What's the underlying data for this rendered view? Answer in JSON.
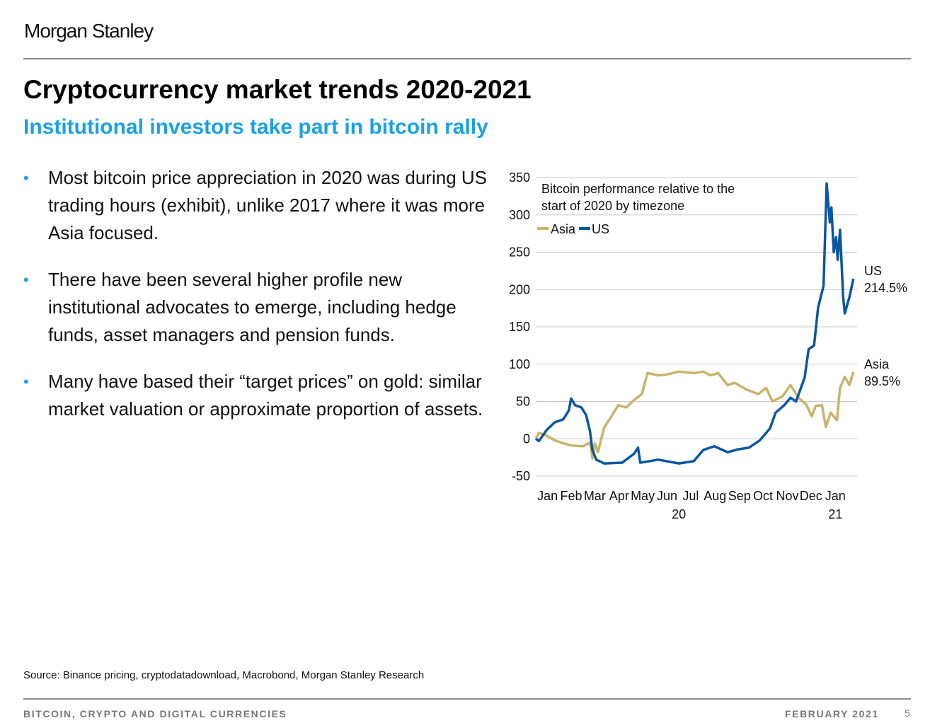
{
  "header": {
    "logo": "Morgan Stanley",
    "title": "Cryptocurrency market trends 2020-2021",
    "subtitle": "Institutional investors take part in bitcoin rally"
  },
  "bullets": [
    "Most bitcoin price appreciation in 2020 was during US trading hours (exhibit), unlike 2017 where it was more Asia focused.",
    "There have been several higher profile new institutional advocates to emerge, including hedge funds, asset managers and pension funds.",
    "Many have based their “target prices” on gold: similar market valuation or approximate proportion of assets."
  ],
  "source": "Source: Binance pricing, cryptodatadownload, Macrobond, Morgan Stanley Research",
  "footer": {
    "left": "BITCOIN, CRYPTO AND DIGITAL CURRENCIES",
    "right": "FEBRUARY 2021",
    "page": "5"
  },
  "colors": {
    "accent": "#1ba1e2",
    "asia": "#c9b36a",
    "us": "#0a56a0"
  },
  "chart_data": {
    "type": "line",
    "title": "Bitcoin performance relative to the start of 2020 by timezone",
    "ylim": [
      -50,
      350
    ],
    "yticks": [
      "350",
      "300",
      "250",
      "200",
      "150",
      "100",
      "50",
      "0",
      "-50"
    ],
    "ytick_values": [
      350,
      300,
      250,
      200,
      150,
      100,
      50,
      0,
      -50
    ],
    "xticks": [
      "Jan",
      "Feb",
      "Mar",
      "Apr",
      "May",
      "Jun",
      "Jul",
      "Aug",
      "Sep",
      "Oct",
      "Nov",
      "Dec",
      "Jan"
    ],
    "xtick_dates": [
      "2020-01-16",
      "2020-02-15",
      "2020-03-16",
      "2020-04-16",
      "2020-05-16",
      "2020-06-16",
      "2020-07-16",
      "2020-08-16",
      "2020-09-16",
      "2020-10-16",
      "2020-11-16",
      "2020-12-16",
      "2021-01-16"
    ],
    "year_labels": [
      {
        "label": "20",
        "date": "2020-07-01"
      },
      {
        "label": "21",
        "date": "2021-01-16"
      }
    ],
    "xlim": [
      "2020-01-01",
      "2021-02-10"
    ],
    "grid": true,
    "legend": "top-left",
    "end_labels": [
      {
        "series": "US",
        "line1": "US",
        "line2": "214.5%"
      },
      {
        "series": "Asia",
        "line1": "Asia",
        "line2": "89.5%"
      }
    ],
    "series": [
      {
        "name": "Asia",
        "points": [
          [
            "2020-01-01",
            0
          ],
          [
            "2020-01-05",
            8
          ],
          [
            "2020-01-15",
            4
          ],
          [
            "2020-01-25",
            -2
          ],
          [
            "2020-02-05",
            -6
          ],
          [
            "2020-02-15",
            -9
          ],
          [
            "2020-03-01",
            -10
          ],
          [
            "2020-03-10",
            -5
          ],
          [
            "2020-03-13",
            -26
          ],
          [
            "2020-03-16",
            -6
          ],
          [
            "2020-03-20",
            -18
          ],
          [
            "2020-03-28",
            15
          ],
          [
            "2020-04-05",
            28
          ],
          [
            "2020-04-15",
            45
          ],
          [
            "2020-04-25",
            42
          ],
          [
            "2020-05-05",
            52
          ],
          [
            "2020-05-15",
            60
          ],
          [
            "2020-05-22",
            88
          ],
          [
            "2020-06-05",
            85
          ],
          [
            "2020-06-15",
            86
          ],
          [
            "2020-07-01",
            90
          ],
          [
            "2020-07-20",
            88
          ],
          [
            "2020-08-01",
            90
          ],
          [
            "2020-08-10",
            85
          ],
          [
            "2020-08-20",
            88
          ],
          [
            "2020-09-01",
            72
          ],
          [
            "2020-09-10",
            75
          ],
          [
            "2020-09-25",
            66
          ],
          [
            "2020-10-10",
            60
          ],
          [
            "2020-10-20",
            68
          ],
          [
            "2020-10-28",
            50
          ],
          [
            "2020-11-10",
            57
          ],
          [
            "2020-11-20",
            72
          ],
          [
            "2020-11-30",
            55
          ],
          [
            "2020-12-10",
            46
          ],
          [
            "2020-12-17",
            30
          ],
          [
            "2020-12-22",
            44
          ],
          [
            "2020-12-30",
            45
          ],
          [
            "2021-01-04",
            16
          ],
          [
            "2021-01-10",
            35
          ],
          [
            "2021-01-18",
            25
          ],
          [
            "2021-01-22",
            68
          ],
          [
            "2021-01-28",
            83
          ],
          [
            "2021-02-03",
            72
          ],
          [
            "2021-02-08",
            89.5
          ]
        ]
      },
      {
        "name": "US",
        "points": [
          [
            "2020-01-01",
            0
          ],
          [
            "2020-01-05",
            -3
          ],
          [
            "2020-01-15",
            12
          ],
          [
            "2020-01-25",
            22
          ],
          [
            "2020-02-05",
            26
          ],
          [
            "2020-02-12",
            38
          ],
          [
            "2020-02-15",
            54
          ],
          [
            "2020-02-20",
            45
          ],
          [
            "2020-02-28",
            42
          ],
          [
            "2020-03-05",
            32
          ],
          [
            "2020-03-10",
            10
          ],
          [
            "2020-03-13",
            -15
          ],
          [
            "2020-03-18",
            -28
          ],
          [
            "2020-03-28",
            -33
          ],
          [
            "2020-04-20",
            -32
          ],
          [
            "2020-05-05",
            -20
          ],
          [
            "2020-05-10",
            -12
          ],
          [
            "2020-05-13",
            -32
          ],
          [
            "2020-06-05",
            -28
          ],
          [
            "2020-07-01",
            -33
          ],
          [
            "2020-07-20",
            -30
          ],
          [
            "2020-08-01",
            -15
          ],
          [
            "2020-08-15",
            -10
          ],
          [
            "2020-09-01",
            -18
          ],
          [
            "2020-09-15",
            -14
          ],
          [
            "2020-09-28",
            -12
          ],
          [
            "2020-10-12",
            -2
          ],
          [
            "2020-10-25",
            14
          ],
          [
            "2020-11-01",
            35
          ],
          [
            "2020-11-12",
            45
          ],
          [
            "2020-11-20",
            55
          ],
          [
            "2020-11-27",
            50
          ],
          [
            "2020-12-08",
            82
          ],
          [
            "2020-12-13",
            120
          ],
          [
            "2020-12-20",
            125
          ],
          [
            "2020-12-25",
            175
          ],
          [
            "2021-01-01",
            205
          ],
          [
            "2021-01-05",
            342
          ],
          [
            "2021-01-09",
            290
          ],
          [
            "2021-01-11",
            310
          ],
          [
            "2021-01-14",
            250
          ],
          [
            "2021-01-17",
            270
          ],
          [
            "2021-01-19",
            240
          ],
          [
            "2021-01-22",
            280
          ],
          [
            "2021-01-26",
            190
          ],
          [
            "2021-01-28",
            168
          ],
          [
            "2021-02-03",
            190
          ],
          [
            "2021-02-08",
            214.5
          ]
        ]
      }
    ]
  }
}
